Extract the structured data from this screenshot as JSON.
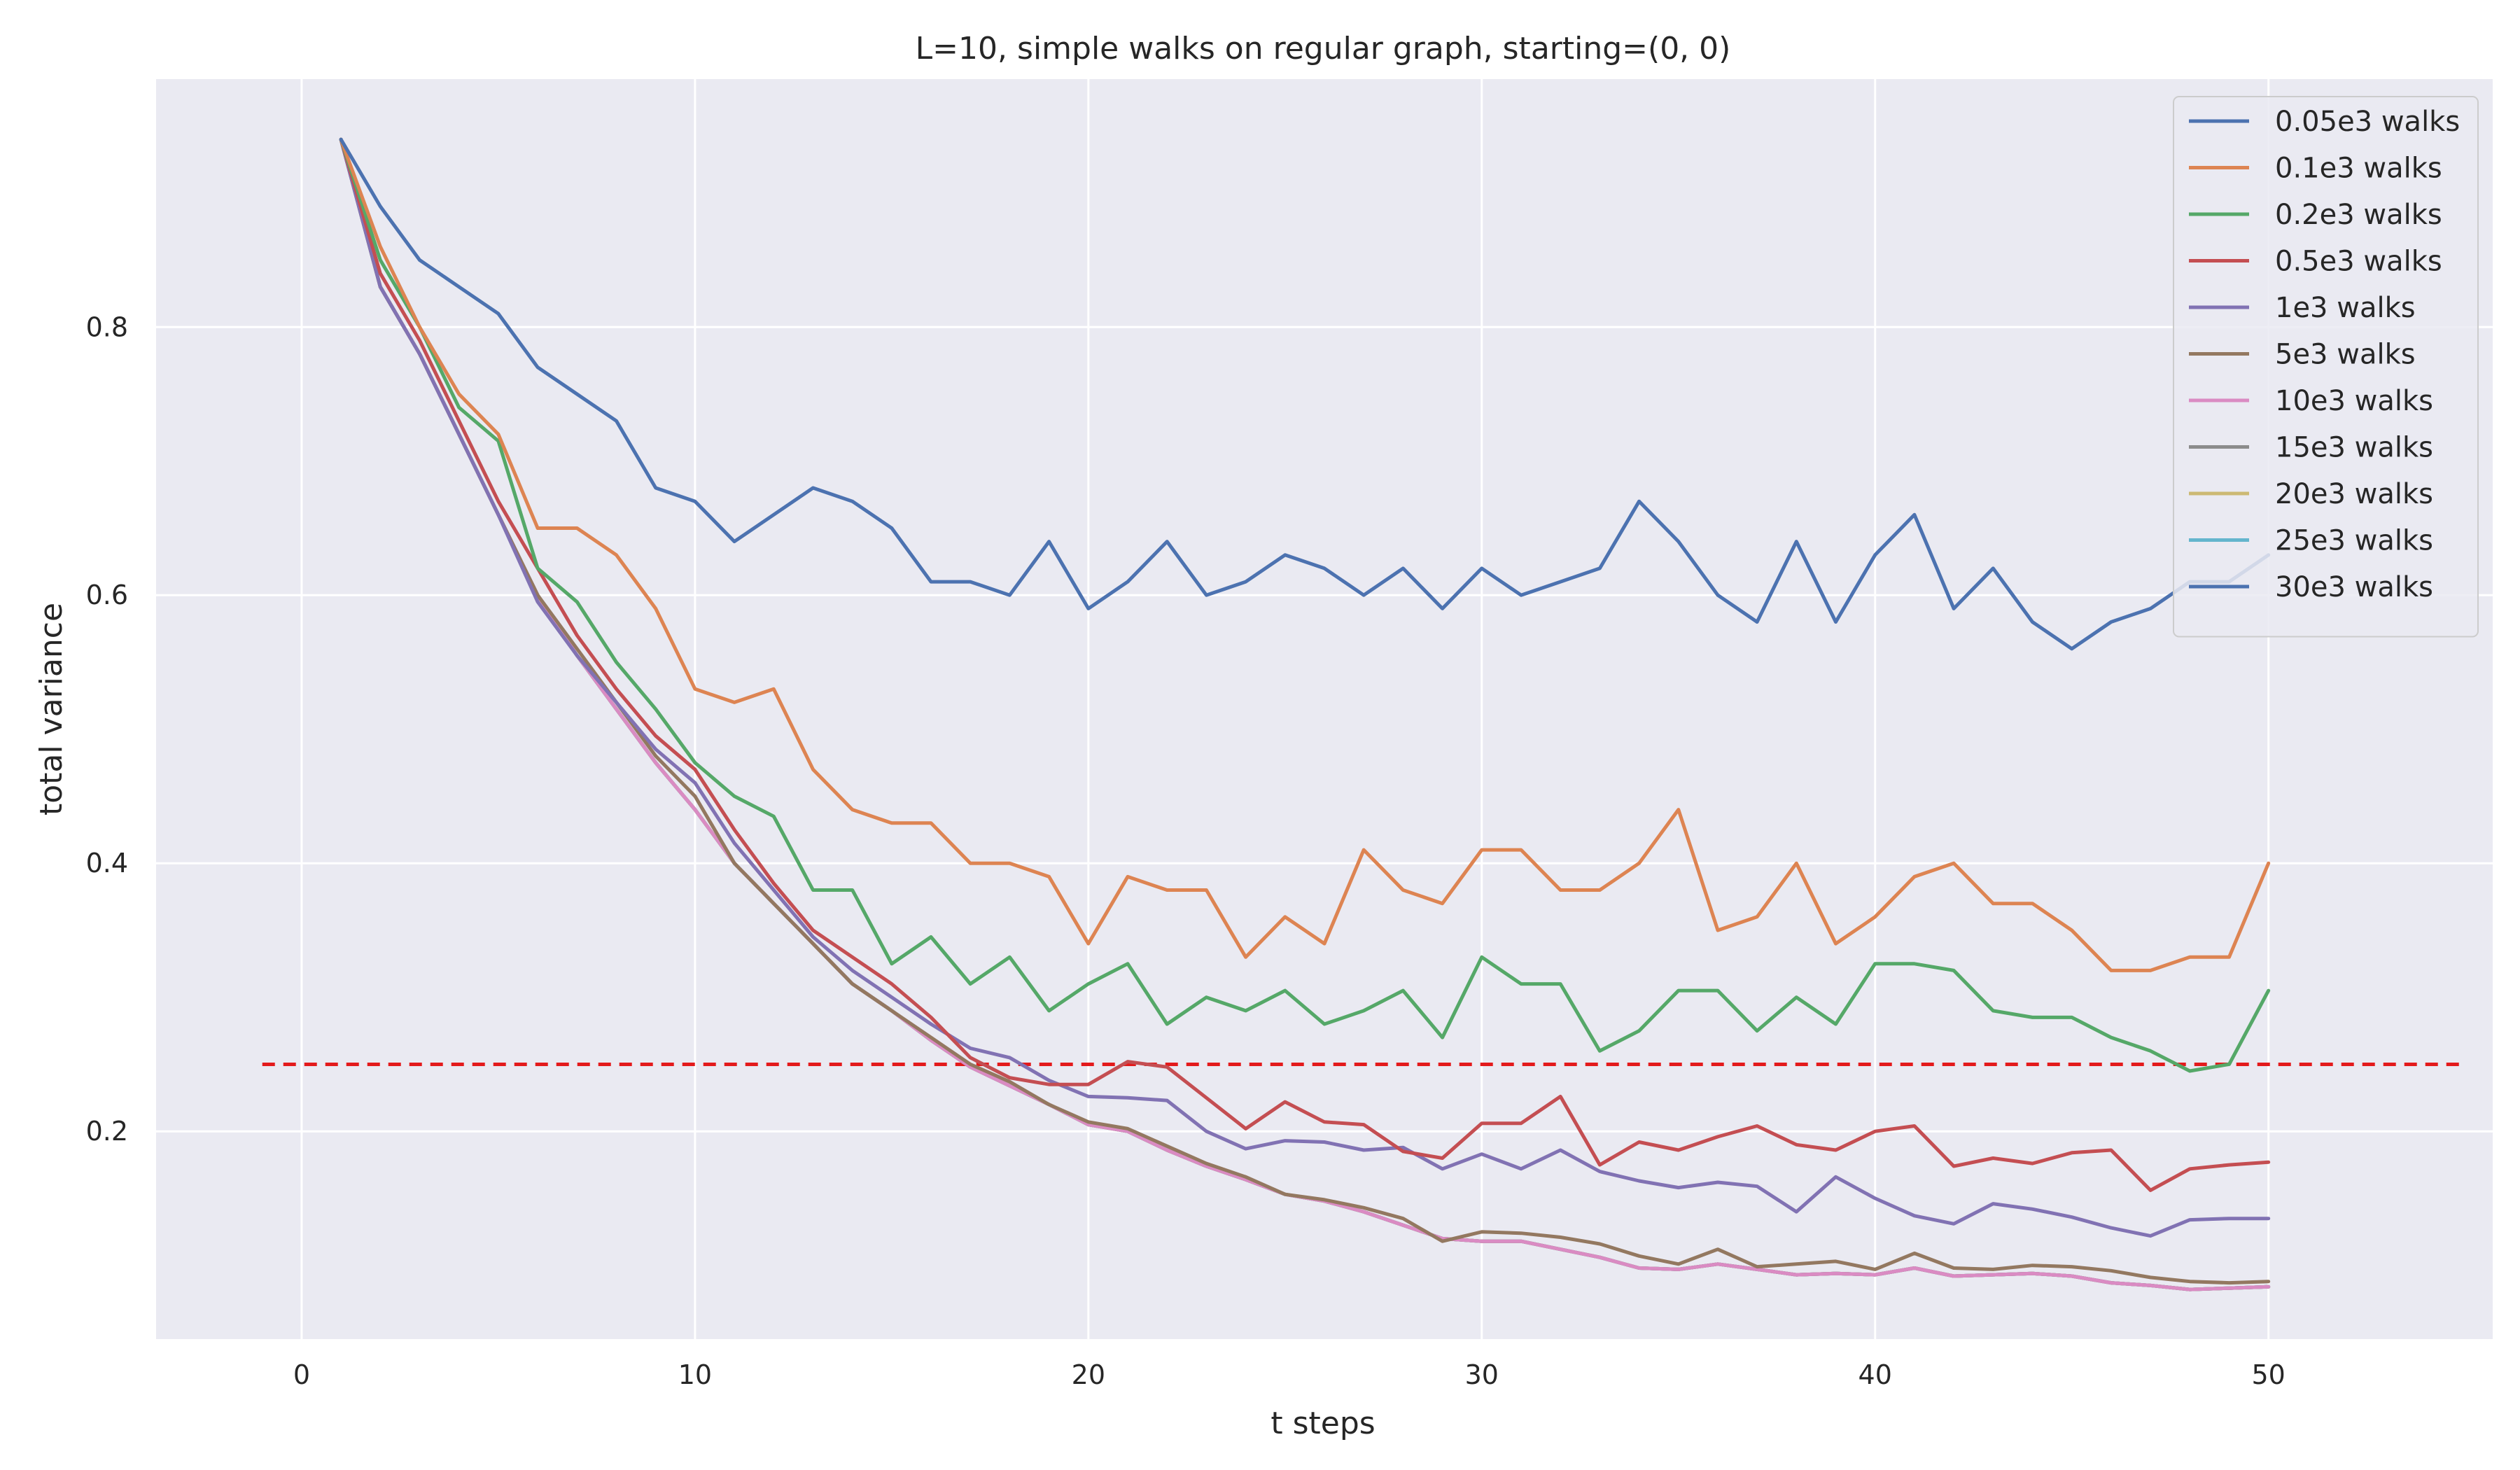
{
  "chart_data": {
    "type": "line",
    "title": "L=10, simple walks on regular graph, starting=(0, 0)",
    "xlabel": "t steps",
    "ylabel": "total variance",
    "xlim": [
      -3.7,
      55.7
    ],
    "ylim": [
      0.045,
      0.985
    ],
    "xticks": [
      0,
      10,
      20,
      30,
      40,
      50
    ],
    "yticks": [
      0.2,
      0.4,
      0.6,
      0.8
    ],
    "grid": true,
    "legend_position": "top-right",
    "reference_line": {
      "y": 0.25,
      "x": [
        -1,
        55
      ],
      "color": "#e31a1c",
      "style": "dashed"
    },
    "colors": [
      "#4c72b0",
      "#dd8452",
      "#55a868",
      "#c44e52",
      "#8172b3",
      "#937860",
      "#da8bc3",
      "#8c8c8c",
      "#ccb974",
      "#64b5cd",
      "#4c72b0"
    ],
    "x": [
      1,
      2,
      3,
      4,
      5,
      6,
      7,
      8,
      9,
      10,
      11,
      12,
      13,
      14,
      15,
      16,
      17,
      18,
      19,
      20,
      21,
      22,
      23,
      24,
      25,
      26,
      27,
      28,
      29,
      30,
      31,
      32,
      33,
      34,
      35,
      36,
      37,
      38,
      39,
      40,
      41,
      42,
      43,
      44,
      45,
      46,
      47,
      48,
      49,
      50
    ],
    "series": [
      {
        "name": "0.05e3 walks",
        "values": [
          0.94,
          0.89,
          0.85,
          0.83,
          0.81,
          0.77,
          0.75,
          0.73,
          0.68,
          0.67,
          0.64,
          0.66,
          0.68,
          0.67,
          0.65,
          0.61,
          0.61,
          0.6,
          0.64,
          0.59,
          0.61,
          0.64,
          0.6,
          0.61,
          0.63,
          0.62,
          0.6,
          0.62,
          0.59,
          0.62,
          0.6,
          0.61,
          0.62,
          0.67,
          0.64,
          0.6,
          0.58,
          0.64,
          0.58,
          0.63,
          0.66,
          0.59,
          0.62,
          0.58,
          0.56,
          0.58,
          0.59,
          0.61,
          0.61,
          0.63
        ]
      },
      {
        "name": "0.1e3 walks",
        "values": [
          0.94,
          0.86,
          0.8,
          0.75,
          0.72,
          0.65,
          0.65,
          0.63,
          0.59,
          0.53,
          0.52,
          0.53,
          0.47,
          0.44,
          0.43,
          0.43,
          0.4,
          0.4,
          0.39,
          0.34,
          0.39,
          0.38,
          0.38,
          0.33,
          0.36,
          0.34,
          0.41,
          0.38,
          0.37,
          0.41,
          0.41,
          0.38,
          0.38,
          0.4,
          0.44,
          0.35,
          0.36,
          0.4,
          0.34,
          0.36,
          0.39,
          0.4,
          0.37,
          0.37,
          0.35,
          0.32,
          0.32,
          0.33,
          0.33,
          0.4
        ]
      },
      {
        "name": "0.2e3 walks",
        "values": [
          0.94,
          0.85,
          0.8,
          0.74,
          0.715,
          0.62,
          0.595,
          0.55,
          0.515,
          0.475,
          0.45,
          0.435,
          0.38,
          0.38,
          0.325,
          0.345,
          0.31,
          0.33,
          0.29,
          0.31,
          0.325,
          0.28,
          0.3,
          0.29,
          0.305,
          0.28,
          0.29,
          0.305,
          0.27,
          0.33,
          0.31,
          0.31,
          0.26,
          0.275,
          0.305,
          0.305,
          0.275,
          0.3,
          0.28,
          0.325,
          0.325,
          0.32,
          0.29,
          0.285,
          0.285,
          0.27,
          0.26,
          0.245,
          0.25,
          0.305
        ]
      },
      {
        "name": "0.5e3 walks",
        "values": [
          0.94,
          0.84,
          0.79,
          0.73,
          0.67,
          0.62,
          0.57,
          0.53,
          0.495,
          0.47,
          0.425,
          0.385,
          0.35,
          0.33,
          0.31,
          0.285,
          0.255,
          0.24,
          0.235,
          0.235,
          0.252,
          0.248,
          0.225,
          0.202,
          0.222,
          0.207,
          0.205,
          0.185,
          0.18,
          0.206,
          0.206,
          0.226,
          0.175,
          0.192,
          0.186,
          0.196,
          0.204,
          0.19,
          0.186,
          0.2,
          0.204,
          0.174,
          0.18,
          0.176,
          0.184,
          0.186,
          0.156,
          0.172,
          0.175,
          0.177
        ]
      },
      {
        "name": "1e3 walks",
        "values": [
          0.94,
          0.83,
          0.78,
          0.72,
          0.66,
          0.595,
          0.555,
          0.52,
          0.485,
          0.46,
          0.415,
          0.38,
          0.345,
          0.32,
          0.3,
          0.28,
          0.262,
          0.255,
          0.238,
          0.226,
          0.225,
          0.223,
          0.2,
          0.187,
          0.193,
          0.192,
          0.186,
          0.188,
          0.172,
          0.183,
          0.172,
          0.186,
          0.17,
          0.163,
          0.158,
          0.162,
          0.159,
          0.14,
          0.166,
          0.15,
          0.137,
          0.131,
          0.146,
          0.142,
          0.136,
          0.128,
          0.122,
          0.134,
          0.135,
          0.135
        ]
      },
      {
        "name": "5e3 walks",
        "values": [
          0.94,
          0.83,
          0.78,
          0.72,
          0.66,
          0.6,
          0.56,
          0.52,
          0.48,
          0.45,
          0.4,
          0.37,
          0.34,
          0.31,
          0.29,
          0.27,
          0.25,
          0.237,
          0.22,
          0.207,
          0.202,
          0.189,
          0.176,
          0.166,
          0.153,
          0.149,
          0.143,
          0.135,
          0.118,
          0.125,
          0.124,
          0.121,
          0.116,
          0.107,
          0.101,
          0.112,
          0.099,
          0.101,
          0.103,
          0.097,
          0.109,
          0.098,
          0.097,
          0.1,
          0.099,
          0.096,
          0.091,
          0.088,
          0.087,
          0.088
        ]
      },
      {
        "name": "10e3 walks",
        "values": [
          0.94,
          0.83,
          0.78,
          0.72,
          0.66,
          0.6,
          0.555,
          0.515,
          0.475,
          0.44,
          0.4,
          0.37,
          0.34,
          0.31,
          0.29,
          0.268,
          0.248,
          0.234,
          0.22,
          0.205,
          0.2,
          0.186,
          0.174,
          0.164,
          0.153,
          0.148,
          0.14,
          0.13,
          0.12,
          0.118,
          0.118,
          0.112,
          0.106,
          0.098,
          0.097,
          0.101,
          0.097,
          0.093,
          0.094,
          0.093,
          0.098,
          0.092,
          0.093,
          0.094,
          0.092,
          0.087,
          0.085,
          0.082,
          0.083,
          0.084
        ]
      },
      {
        "name": "15e3 walks",
        "values": [
          0.94,
          0.83,
          0.78,
          0.72,
          0.66,
          0.6,
          0.555,
          0.515,
          0.475,
          0.44,
          0.4,
          0.37,
          0.34,
          0.31,
          0.29,
          0.268,
          0.248,
          0.234,
          0.22,
          0.205,
          0.2,
          0.186,
          0.174,
          0.164,
          0.153,
          0.148,
          0.14,
          0.13,
          0.12,
          0.118,
          0.118,
          0.112,
          0.106,
          0.098,
          0.097,
          0.101,
          0.097,
          0.093,
          0.094,
          0.093,
          0.098,
          0.092,
          0.093,
          0.094,
          0.092,
          0.087,
          0.085,
          0.082,
          0.083,
          0.084
        ]
      },
      {
        "name": "20e3 walks",
        "values": [
          0.94,
          0.83,
          0.78,
          0.72,
          0.66,
          0.6,
          0.555,
          0.515,
          0.475,
          0.44,
          0.4,
          0.37,
          0.34,
          0.31,
          0.29,
          0.268,
          0.248,
          0.234,
          0.22,
          0.205,
          0.2,
          0.186,
          0.174,
          0.164,
          0.153,
          0.148,
          0.14,
          0.13,
          0.12,
          0.118,
          0.118,
          0.112,
          0.106,
          0.098,
          0.097,
          0.101,
          0.097,
          0.093,
          0.094,
          0.093,
          0.098,
          0.092,
          0.093,
          0.094,
          0.092,
          0.087,
          0.085,
          0.082,
          0.083,
          0.084
        ]
      },
      {
        "name": "25e3 walks",
        "values": [
          0.94,
          0.83,
          0.78,
          0.72,
          0.66,
          0.6,
          0.555,
          0.515,
          0.475,
          0.44,
          0.4,
          0.37,
          0.34,
          0.31,
          0.29,
          0.268,
          0.248,
          0.234,
          0.22,
          0.205,
          0.2,
          0.186,
          0.174,
          0.164,
          0.153,
          0.148,
          0.14,
          0.13,
          0.12,
          0.118,
          0.118,
          0.112,
          0.106,
          0.098,
          0.097,
          0.101,
          0.097,
          0.093,
          0.094,
          0.093,
          0.098,
          0.092,
          0.093,
          0.094,
          0.092,
          0.087,
          0.085,
          0.082,
          0.083,
          0.084
        ]
      },
      {
        "name": "30e3 walks",
        "values": [
          0.94,
          0.83,
          0.78,
          0.72,
          0.66,
          0.6,
          0.555,
          0.515,
          0.475,
          0.44,
          0.4,
          0.37,
          0.34,
          0.31,
          0.29,
          0.268,
          0.248,
          0.234,
          0.22,
          0.205,
          0.2,
          0.186,
          0.174,
          0.164,
          0.153,
          0.148,
          0.14,
          0.13,
          0.12,
          0.118,
          0.118,
          0.112,
          0.106,
          0.098,
          0.097,
          0.101,
          0.097,
          0.093,
          0.094,
          0.093,
          0.098,
          0.092,
          0.093,
          0.094,
          0.092,
          0.087,
          0.085,
          0.082,
          0.083,
          0.084
        ]
      }
    ]
  }
}
